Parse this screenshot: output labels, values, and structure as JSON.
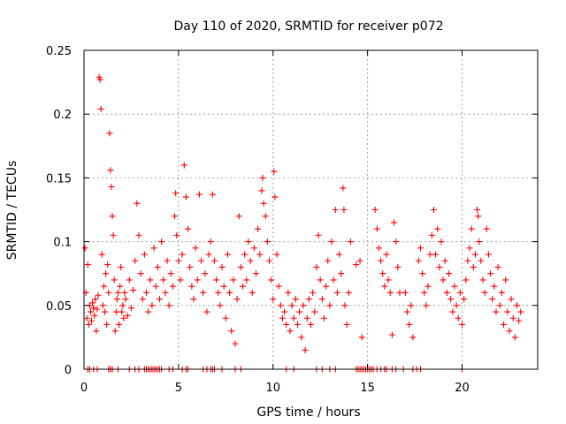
{
  "chart_data": {
    "type": "scatter",
    "title": "Day 110 of 2020, SRMTID for receiver p072",
    "xlabel": "GPS time / hours",
    "ylabel": "SRMTID / TECUs",
    "xlim": [
      0,
      24
    ],
    "ylim": [
      0,
      0.25
    ],
    "xticks": [
      0,
      5,
      10,
      15,
      20
    ],
    "xtick_labels": [
      "0",
      "5",
      "10",
      "15",
      "20"
    ],
    "yticks": [
      0,
      0.05,
      0.1,
      0.15,
      0.2,
      0.25
    ],
    "ytick_labels": [
      "0",
      "0.05",
      "0.1",
      "0.15",
      "0.2",
      "0.25"
    ],
    "grid": true,
    "legend": "none",
    "marker": "+",
    "series": [
      {
        "name": "SRMTID",
        "color": "#ff0000",
        "points": [
          [
            0.05,
            0.095
          ],
          [
            0.1,
            0.06
          ],
          [
            0.15,
            0.04
          ],
          [
            0.2,
            0.082
          ],
          [
            0.25,
            0.035
          ],
          [
            0.3,
            0.05
          ],
          [
            0.35,
            0.045
          ],
          [
            0.4,
            0.038
          ],
          [
            0.45,
            0.052
          ],
          [
            0.5,
            0.048
          ],
          [
            0.55,
            0.042
          ],
          [
            0.6,
            0.055
          ],
          [
            0.65,
            0.03
          ],
          [
            0.7,
            0.047
          ],
          [
            0.75,
            0.058
          ],
          [
            0.8,
            0.229
          ],
          [
            0.85,
            0.227
          ],
          [
            0.9,
            0.204
          ],
          [
            0.95,
            0.09
          ],
          [
            1.0,
            0.05
          ],
          [
            1.05,
            0.065
          ],
          [
            1.1,
            0.045
          ],
          [
            1.15,
            0.075
          ],
          [
            1.2,
            0.035
          ],
          [
            1.25,
            0.082
          ],
          [
            1.3,
            0.06
          ],
          [
            1.35,
            0.185
          ],
          [
            1.4,
            0.156
          ],
          [
            1.45,
            0.143
          ],
          [
            1.5,
            0.12
          ],
          [
            1.55,
            0.105
          ],
          [
            1.6,
            0.07
          ],
          [
            1.65,
            0.03
          ],
          [
            1.7,
            0.045
          ],
          [
            1.75,
            0.055
          ],
          [
            1.8,
            0.06
          ],
          [
            1.85,
            0.035
          ],
          [
            1.9,
            0.065
          ],
          [
            1.95,
            0.08
          ],
          [
            2.0,
            0.045
          ],
          [
            2.05,
            0.05
          ],
          [
            2.1,
            0.04
          ],
          [
            2.15,
            0.06
          ],
          [
            2.2,
            0.055
          ],
          [
            2.3,
            0.042
          ],
          [
            2.4,
            0.07
          ],
          [
            2.5,
            0.048
          ],
          [
            2.6,
            0.062
          ],
          [
            2.7,
            0.085
          ],
          [
            2.8,
            0.13
          ],
          [
            2.9,
            0.105
          ],
          [
            3.0,
            0.075
          ],
          [
            3.1,
            0.055
          ],
          [
            3.2,
            0.09
          ],
          [
            3.3,
            0.06
          ],
          [
            3.4,
            0.045
          ],
          [
            3.5,
            0.07
          ],
          [
            3.6,
            0.05
          ],
          [
            3.7,
            0.095
          ],
          [
            3.8,
            0.065
          ],
          [
            3.9,
            0.08
          ],
          [
            4.0,
            0.055
          ],
          [
            4.1,
            0.1
          ],
          [
            4.2,
            0.07
          ],
          [
            4.3,
            0.06
          ],
          [
            4.4,
            0.085
          ],
          [
            4.5,
            0.05
          ],
          [
            4.6,
            0.075
          ],
          [
            4.7,
            0.065
          ],
          [
            4.8,
            0.12
          ],
          [
            4.85,
            0.138
          ],
          [
            4.9,
            0.105
          ],
          [
            5.0,
            0.085
          ],
          [
            5.1,
            0.07
          ],
          [
            5.2,
            0.09
          ],
          [
            5.3,
            0.16
          ],
          [
            5.4,
            0.135
          ],
          [
            5.5,
            0.11
          ],
          [
            5.6,
            0.08
          ],
          [
            5.7,
            0.065
          ],
          [
            5.8,
            0.055
          ],
          [
            5.9,
            0.095
          ],
          [
            6.0,
            0.07
          ],
          [
            6.1,
            0.137
          ],
          [
            6.2,
            0.085
          ],
          [
            6.3,
            0.06
          ],
          [
            6.4,
            0.075
          ],
          [
            6.5,
            0.045
          ],
          [
            6.6,
            0.09
          ],
          [
            6.7,
            0.1
          ],
          [
            6.8,
            0.137
          ],
          [
            6.9,
            0.085
          ],
          [
            7.0,
            0.07
          ],
          [
            7.1,
            0.06
          ],
          [
            7.2,
            0.05
          ],
          [
            7.3,
            0.08
          ],
          [
            7.4,
            0.065
          ],
          [
            7.5,
            0.04
          ],
          [
            7.6,
            0.09
          ],
          [
            7.7,
            0.06
          ],
          [
            7.8,
            0.03
          ],
          [
            7.9,
            0.07
          ],
          [
            8.0,
            0.02
          ],
          [
            8.1,
            0.055
          ],
          [
            8.2,
            0.12
          ],
          [
            8.3,
            0.08
          ],
          [
            8.4,
            0.065
          ],
          [
            8.5,
            0.09
          ],
          [
            8.6,
            0.07
          ],
          [
            8.7,
            0.1
          ],
          [
            8.8,
            0.085
          ],
          [
            8.9,
            0.06
          ],
          [
            9.0,
            0.095
          ],
          [
            9.1,
            0.075
          ],
          [
            9.2,
            0.11
          ],
          [
            9.3,
            0.09
          ],
          [
            9.4,
            0.14
          ],
          [
            9.45,
            0.15
          ],
          [
            9.5,
            0.13
          ],
          [
            9.6,
            0.12
          ],
          [
            9.7,
            0.1
          ],
          [
            9.8,
            0.085
          ],
          [
            9.9,
            0.07
          ],
          [
            10.0,
            0.055
          ],
          [
            10.05,
            0.155
          ],
          [
            10.1,
            0.135
          ],
          [
            10.2,
            0.09
          ],
          [
            10.3,
            0.065
          ],
          [
            10.4,
            0.05
          ],
          [
            10.5,
            0.04
          ],
          [
            10.6,
            0.045
          ],
          [
            10.7,
            0.035
          ],
          [
            10.8,
            0.06
          ],
          [
            10.9,
            0.03
          ],
          [
            11.0,
            0.05
          ],
          [
            11.1,
            0.04
          ],
          [
            11.2,
            0.055
          ],
          [
            11.3,
            0.035
          ],
          [
            11.4,
            0.045
          ],
          [
            11.5,
            0.025
          ],
          [
            11.6,
            0.05
          ],
          [
            11.7,
            0.015
          ],
          [
            11.8,
            0.04
          ],
          [
            11.9,
            0.055
          ],
          [
            12.0,
            0.035
          ],
          [
            12.1,
            0.06
          ],
          [
            12.2,
            0.045
          ],
          [
            12.3,
            0.08
          ],
          [
            12.4,
            0.105
          ],
          [
            12.5,
            0.07
          ],
          [
            12.6,
            0.055
          ],
          [
            12.7,
            0.04
          ],
          [
            12.8,
            0.065
          ],
          [
            12.9,
            0.085
          ],
          [
            13.0,
            0.05
          ],
          [
            13.1,
            0.1
          ],
          [
            13.2,
            0.07
          ],
          [
            13.3,
            0.125
          ],
          [
            13.4,
            0.06
          ],
          [
            13.5,
            0.09
          ],
          [
            13.6,
            0.075
          ],
          [
            13.7,
            0.142
          ],
          [
            13.75,
            0.125
          ],
          [
            13.8,
            0.05
          ],
          [
            13.9,
            0.035
          ],
          [
            14.0,
            0.06
          ],
          [
            14.1,
            0.1
          ],
          [
            14.4,
            0.082
          ],
          [
            14.6,
            0.085
          ],
          [
            14.7,
            0.025
          ],
          [
            15.4,
            0.125
          ],
          [
            15.5,
            0.11
          ],
          [
            15.6,
            0.095
          ],
          [
            15.7,
            0.085
          ],
          [
            15.8,
            0.075
          ],
          [
            15.9,
            0.065
          ],
          [
            16.0,
            0.09
          ],
          [
            16.1,
            0.07
          ],
          [
            16.2,
            0.06
          ],
          [
            16.3,
            0.027
          ],
          [
            16.4,
            0.115
          ],
          [
            16.5,
            0.1
          ],
          [
            16.6,
            0.08
          ],
          [
            16.7,
            0.06
          ],
          [
            17.0,
            0.06
          ],
          [
            17.1,
            0.045
          ],
          [
            17.2,
            0.035
          ],
          [
            17.3,
            0.05
          ],
          [
            17.4,
            0.025
          ],
          [
            17.7,
            0.085
          ],
          [
            17.8,
            0.095
          ],
          [
            17.9,
            0.075
          ],
          [
            18.0,
            0.06
          ],
          [
            18.1,
            0.05
          ],
          [
            18.2,
            0.065
          ],
          [
            18.3,
            0.09
          ],
          [
            18.4,
            0.105
          ],
          [
            18.5,
            0.125
          ],
          [
            18.6,
            0.09
          ],
          [
            18.7,
            0.11
          ],
          [
            18.8,
            0.08
          ],
          [
            18.9,
            0.1
          ],
          [
            19.0,
            0.07
          ],
          [
            19.1,
            0.085
          ],
          [
            19.2,
            0.06
          ],
          [
            19.3,
            0.075
          ],
          [
            19.4,
            0.055
          ],
          [
            19.5,
            0.045
          ],
          [
            19.6,
            0.065
          ],
          [
            19.7,
            0.05
          ],
          [
            19.8,
            0.04
          ],
          [
            19.9,
            0.06
          ],
          [
            20.0,
            0.035
          ],
          [
            20.1,
            0.055
          ],
          [
            20.2,
            0.07
          ],
          [
            20.3,
            0.085
          ],
          [
            20.4,
            0.095
          ],
          [
            20.5,
            0.11
          ],
          [
            20.6,
            0.08
          ],
          [
            20.7,
            0.09
          ],
          [
            20.8,
            0.125
          ],
          [
            20.85,
            0.12
          ],
          [
            20.9,
            0.1
          ],
          [
            21.0,
            0.085
          ],
          [
            21.1,
            0.07
          ],
          [
            21.2,
            0.06
          ],
          [
            21.3,
            0.11
          ],
          [
            21.4,
            0.09
          ],
          [
            21.5,
            0.075
          ],
          [
            21.6,
            0.055
          ],
          [
            21.7,
            0.065
          ],
          [
            21.8,
            0.045
          ],
          [
            21.9,
            0.08
          ],
          [
            22.0,
            0.05
          ],
          [
            22.1,
            0.06
          ],
          [
            22.2,
            0.035
          ],
          [
            22.3,
            0.07
          ],
          [
            22.4,
            0.045
          ],
          [
            22.5,
            0.03
          ],
          [
            22.6,
            0.055
          ],
          [
            22.7,
            0.04
          ],
          [
            22.8,
            0.025
          ],
          [
            22.9,
            0.05
          ],
          [
            23.0,
            0.038
          ],
          [
            23.1,
            0.045
          ],
          [
            0.2,
            0.0
          ],
          [
            0.3,
            0.0
          ],
          [
            0.5,
            0.0
          ],
          [
            0.7,
            0.0
          ],
          [
            1.3,
            0.0
          ],
          [
            1.4,
            0.0
          ],
          [
            1.5,
            0.0
          ],
          [
            1.8,
            0.0
          ],
          [
            2.4,
            0.0
          ],
          [
            2.7,
            0.0
          ],
          [
            2.9,
            0.0
          ],
          [
            3.2,
            0.0
          ],
          [
            3.3,
            0.0
          ],
          [
            3.4,
            0.0
          ],
          [
            3.5,
            0.0
          ],
          [
            3.6,
            0.0
          ],
          [
            3.7,
            0.0
          ],
          [
            3.8,
            0.0
          ],
          [
            3.9,
            0.0
          ],
          [
            4.0,
            0.0
          ],
          [
            4.1,
            0.0
          ],
          [
            4.5,
            0.0
          ],
          [
            4.7,
            0.0
          ],
          [
            5.2,
            0.0
          ],
          [
            5.4,
            0.0
          ],
          [
            5.5,
            0.0
          ],
          [
            6.3,
            0.0
          ],
          [
            6.5,
            0.0
          ],
          [
            6.7,
            0.0
          ],
          [
            6.8,
            0.0
          ],
          [
            6.9,
            0.0
          ],
          [
            7.3,
            0.0
          ],
          [
            8.0,
            0.0
          ],
          [
            8.3,
            0.0
          ],
          [
            10.7,
            0.0
          ],
          [
            11.1,
            0.0
          ],
          [
            12.3,
            0.0
          ],
          [
            12.6,
            0.0
          ],
          [
            13.0,
            0.0
          ],
          [
            13.3,
            0.0
          ],
          [
            14.4,
            0.0
          ],
          [
            14.5,
            0.0
          ],
          [
            14.6,
            0.0
          ],
          [
            14.7,
            0.0
          ],
          [
            14.8,
            0.0
          ],
          [
            14.9,
            0.0
          ],
          [
            15.0,
            0.0
          ],
          [
            15.1,
            0.0
          ],
          [
            15.2,
            0.0
          ],
          [
            15.3,
            0.0
          ],
          [
            15.5,
            0.0
          ],
          [
            15.7,
            0.0
          ],
          [
            15.9,
            0.0
          ],
          [
            16.0,
            0.0
          ],
          [
            16.3,
            0.0
          ],
          [
            16.5,
            0.0
          ],
          [
            16.9,
            0.0
          ],
          [
            17.4,
            0.0
          ],
          [
            17.6,
            0.0
          ],
          [
            17.8,
            0.0
          ],
          [
            20.0,
            0.0
          ]
        ]
      }
    ]
  }
}
